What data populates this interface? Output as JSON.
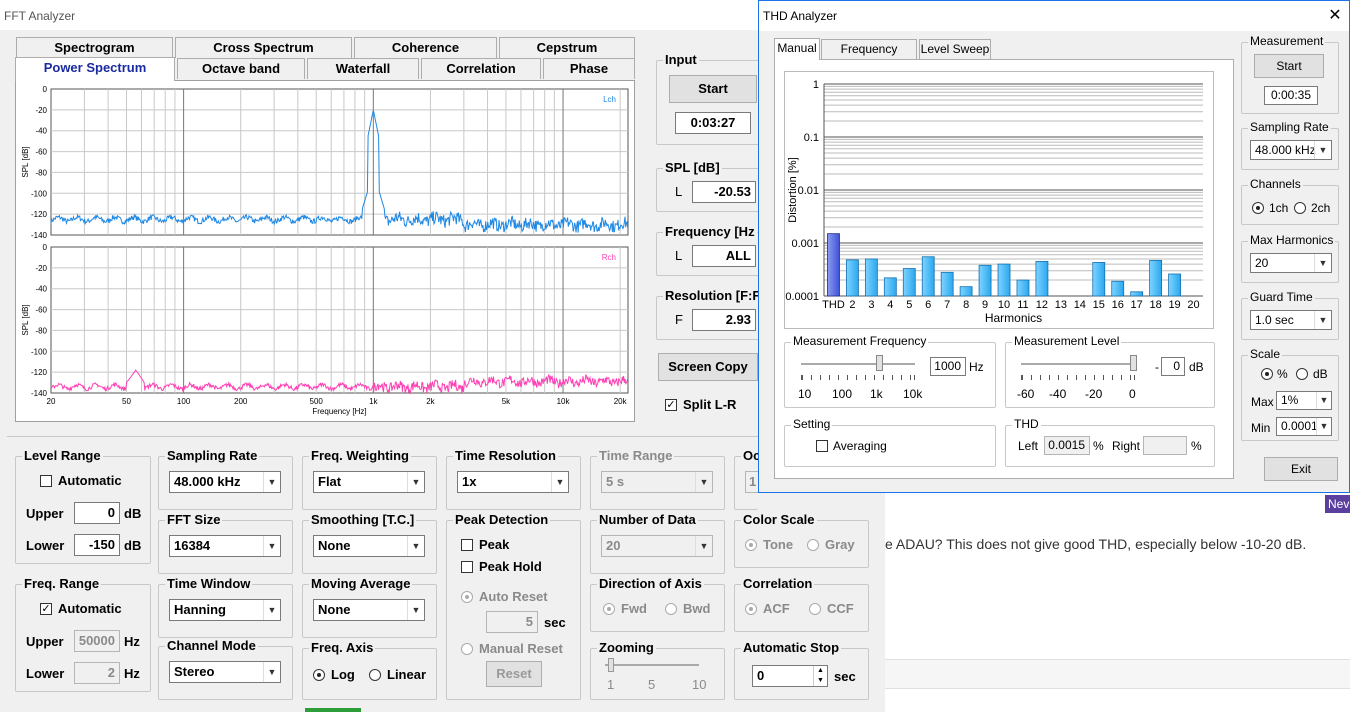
{
  "fft": {
    "title": "FFT Analyzer",
    "tabs_row1": [
      "Spectrogram",
      "Cross Spectrum",
      "Coherence",
      "Cepstrum"
    ],
    "tabs_row2": [
      "Power Spectrum",
      "Octave band",
      "Waterfall",
      "Correlation",
      "Phase"
    ],
    "plot": {
      "top_label": "Lch",
      "bottom_label": "Rch",
      "ylabel": "SPL [dB]",
      "xlabel": "Frequency [Hz]",
      "yticks": [
        "0",
        "-20",
        "-40",
        "-60",
        "-80",
        "-100",
        "-120",
        "-140"
      ],
      "xticks": [
        "20",
        "50",
        "100",
        "200",
        "500",
        "1k",
        "2k",
        "5k",
        "10k",
        "20k"
      ],
      "colors": {
        "lch": "#1e88e5",
        "rch": "#ff3fb4"
      }
    },
    "input": {
      "label": "Input",
      "start": "Start",
      "time": "0:03:27"
    },
    "spl": {
      "label": "SPL [dB]",
      "ch": "L",
      "value": "-20.53"
    },
    "frequency": {
      "label": "Frequency [Hz",
      "ch": "L",
      "value": "ALL"
    },
    "resolution": {
      "label": "Resolution [F:F",
      "ch": "F",
      "value": "2.93"
    },
    "screen_copy": "Screen Copy",
    "split_lr": "Split L-R",
    "level_range": {
      "label": "Level Range",
      "automatic": "Automatic",
      "upper": "Upper",
      "upper_val": "0",
      "lower": "Lower",
      "lower_val": "-150",
      "unit": "dB"
    },
    "freq_range": {
      "label": "Freq. Range",
      "automatic": "Automatic",
      "upper": "Upper",
      "upper_val": "50000",
      "lower": "Lower",
      "lower_val": "2",
      "unit": "Hz"
    },
    "sampling_rate": {
      "label": "Sampling Rate",
      "value": "48.000 kHz"
    },
    "fft_size": {
      "label": "FFT Size",
      "value": "16384"
    },
    "time_window": {
      "label": "Time Window",
      "value": "Hanning"
    },
    "channel_mode": {
      "label": "Channel Mode",
      "value": "Stereo"
    },
    "freq_weighting": {
      "label": "Freq. Weighting",
      "value": "Flat"
    },
    "smoothing": {
      "label": "Smoothing [T.C.]",
      "value": "None"
    },
    "moving_average": {
      "label": "Moving Average",
      "value": "None"
    },
    "freq_axis": {
      "label": "Freq. Axis",
      "log": "Log",
      "linear": "Linear"
    },
    "time_resolution": {
      "label": "Time Resolution",
      "value": "1x"
    },
    "peak_detection": {
      "label": "Peak Detection",
      "peak": "Peak",
      "peak_hold": "Peak Hold",
      "auto_reset": "Auto Reset",
      "sec_val": "5",
      "sec": "sec",
      "manual_reset": "Manual Reset",
      "reset": "Reset"
    },
    "time_range": {
      "label": "Time Range",
      "value": "5 s"
    },
    "number_of_data": {
      "label": "Number of Data",
      "value": "20"
    },
    "direction_axis": {
      "label": "Direction of Axis",
      "fwd": "Fwd",
      "bwd": "Bwd"
    },
    "zooming": {
      "label": "Zooming",
      "ticks": [
        "1",
        "5",
        "10"
      ]
    },
    "oc": {
      "label": "Oc",
      "value": "1"
    },
    "color_scale": {
      "label": "Color Scale",
      "tone": "Tone",
      "gray": "Gray"
    },
    "correlation": {
      "label": "Correlation",
      "acf": "ACF",
      "ccf": "CCF"
    },
    "auto_stop": {
      "label": "Automatic Stop",
      "value": "0",
      "sec": "sec"
    }
  },
  "thd": {
    "title": "THD Analyzer",
    "close": "✕",
    "tabs": [
      "Manual",
      "Frequency Sweep",
      "Level Sweep"
    ],
    "measurement": {
      "label": "Measurement",
      "start": "Start",
      "time": "0:00:35"
    },
    "sampling_rate": {
      "label": "Sampling Rate",
      "value": "48.000 kHz"
    },
    "channels": {
      "label": "Channels",
      "one": "1ch",
      "two": "2ch"
    },
    "max_harmonics": {
      "label": "Max Harmonics",
      "value": "20"
    },
    "guard_time": {
      "label": "Guard Time",
      "value": "1.0 sec"
    },
    "scale": {
      "label": "Scale",
      "pct": "%",
      "db": "dB",
      "max": "Max",
      "max_val": "1%",
      "min": "Min",
      "min_val": "0.0001%"
    },
    "meas_freq": {
      "label": "Measurement Frequency",
      "value": "1000",
      "unit": "Hz",
      "ticks": [
        "10",
        "100",
        "1k",
        "10k"
      ]
    },
    "meas_level": {
      "label": "Measurement Level",
      "prefix": "-",
      "value": "0",
      "unit": "dB",
      "ticks": [
        "-60",
        "-40",
        "-20",
        "0"
      ]
    },
    "setting": {
      "label": "Setting",
      "averaging": "Averaging"
    },
    "thd_box": {
      "label": "THD",
      "left": "Left",
      "left_val": "0.0015",
      "pct": "%",
      "right": "Right",
      "right_val": ""
    },
    "chart": {
      "ylabel": "Distortion [%]",
      "xlabel": "Harmonics",
      "yticks": [
        "1",
        "0.1",
        "0.01",
        "0.001",
        "0.0001"
      ]
    }
  },
  "chart_data": {
    "type": "bar",
    "categories": [
      "THD",
      "2",
      "3",
      "4",
      "5",
      "6",
      "7",
      "8",
      "9",
      "10",
      "11",
      "12",
      "13",
      "14",
      "15",
      "16",
      "17",
      "18",
      "19",
      "20"
    ],
    "values": [
      0.0015,
      0.00048,
      0.0005,
      0.00022,
      0.00033,
      0.00055,
      0.00028,
      0.00015,
      0.00038,
      0.0004,
      0.0002,
      0.00045,
      0.0001,
      0.0001,
      0.00043,
      0.00019,
      0.00012,
      0.00047,
      0.00026,
      0.0001
    ],
    "xlabel": "Harmonics",
    "ylabel": "Distortion [%]",
    "ylim": [
      0.0001,
      1
    ],
    "yscale": "log",
    "colors": {
      "thd": "#3f51d8",
      "harmonic": "#29a8ee"
    }
  },
  "background": {
    "text": "e ADAU? This does not give good THD, especially below -10-20 dB.",
    "badge": "Nev"
  }
}
